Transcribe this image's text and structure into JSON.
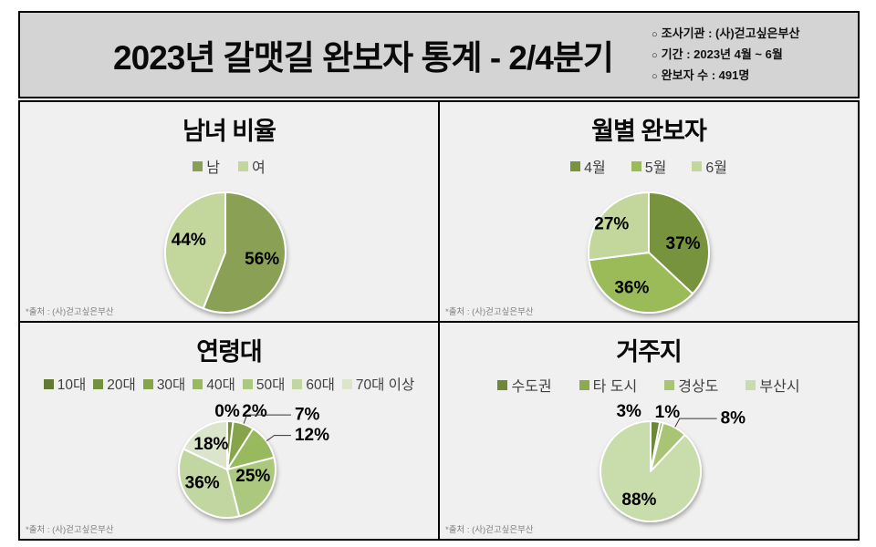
{
  "header": {
    "title": "2023년 갈맷길 완보자 통계 - 2/4분기",
    "bullet_glyph": "○",
    "info": [
      "조사기관 : (사)걷고싶은부산",
      "기간 : 2023년 4월 ~ 6월",
      "완보자 수 : 491명"
    ]
  },
  "chart_data": [
    {
      "type": "pie",
      "title": "남녀 비율",
      "categories": [
        "남",
        "여"
      ],
      "values": [
        56,
        44
      ],
      "data_labels": [
        "56%",
        "44%"
      ],
      "colors": [
        "#89a054",
        "#c3d69b"
      ],
      "legend_position": "top",
      "label_format": "percent",
      "source": "*출처 : (사)걷고싶은부산"
    },
    {
      "type": "pie",
      "title": "월별 완보자",
      "categories": [
        "4월",
        "5월",
        "6월"
      ],
      "values": [
        37,
        36,
        27
      ],
      "data_labels": [
        "37%",
        "36%",
        "27%"
      ],
      "colors": [
        "#77933c",
        "#9bbb59",
        "#c3d69b"
      ],
      "legend_position": "top",
      "label_format": "percent",
      "source": "*출처 : (사)걷고싶은부산"
    },
    {
      "type": "pie",
      "title": "연령대",
      "categories": [
        "10대",
        "20대",
        "30대",
        "40대",
        "50대",
        "60대",
        "70대 이상"
      ],
      "values": [
        0,
        2,
        7,
        12,
        25,
        36,
        18
      ],
      "data_labels": [
        "0%",
        "2%",
        "7%",
        "12%",
        "25%",
        "36%",
        "18%"
      ],
      "colors": [
        "#637a35",
        "#75913f",
        "#86a54b",
        "#98b95d",
        "#abc87e",
        "#c2d6a2",
        "#dae5c9"
      ],
      "legend_position": "top",
      "label_format": "percent",
      "source": "*출처 : (사)걷고싶은부산"
    },
    {
      "type": "pie",
      "title": "거주지",
      "categories": [
        "수도권",
        "타 도시",
        "경상도",
        "부산시"
      ],
      "values": [
        3,
        1,
        8,
        88
      ],
      "data_labels": [
        "3%",
        "1%",
        "8%",
        "88%"
      ],
      "colors": [
        "#6c8838",
        "#8caa4e",
        "#a9c474",
        "#c9dcab"
      ],
      "legend_position": "top",
      "label_format": "percent",
      "source": "*출처 : (사)걷고싶은부산"
    }
  ]
}
